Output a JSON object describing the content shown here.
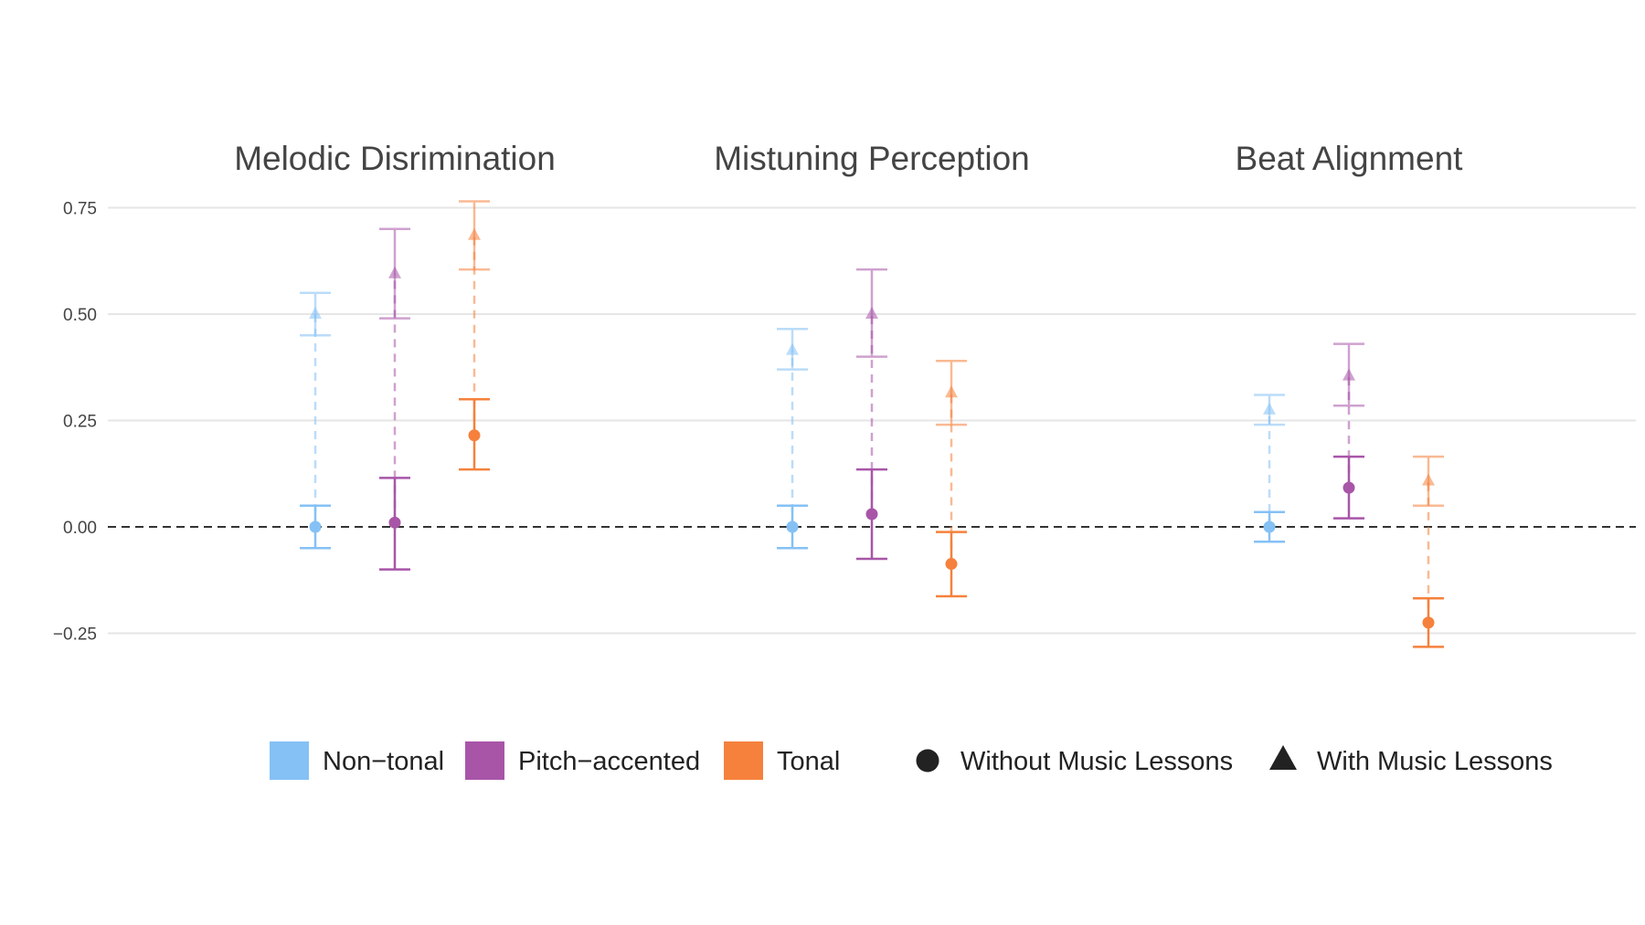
{
  "chart_data": {
    "type": "scatter",
    "subtype": "point-range with error bars",
    "panels": [
      "Melodic Disrimination",
      "Mistuning Perception",
      "Beat Alignment"
    ],
    "groups": [
      "Non−tonal",
      "Pitch−accented",
      "Tonal"
    ],
    "conditions": [
      "Without Music Lessons",
      "With Music Lessons"
    ],
    "yticks": [
      -0.25,
      0.0,
      0.25,
      0.5,
      0.75
    ],
    "ytick_labels": [
      "−0.25",
      "0.00",
      "0.25",
      "0.50",
      "0.75"
    ],
    "ylim": [
      -0.32,
      0.8
    ],
    "reference_line": 0.0,
    "grid": true,
    "legend_position": "bottom",
    "colors": {
      "Non−tonal": "#85c1f5",
      "Pitch−accented": "#a855a8",
      "Tonal": "#f5813c"
    },
    "data": [
      {
        "panel": "Melodic Disrimination",
        "group": "Non−tonal",
        "without": {
          "y": 0.0,
          "lo": -0.05,
          "hi": 0.05
        },
        "with": {
          "y": 0.5,
          "lo": 0.45,
          "hi": 0.55
        }
      },
      {
        "panel": "Melodic Disrimination",
        "group": "Pitch−accented",
        "without": {
          "y": 0.01,
          "lo": -0.1,
          "hi": 0.115
        },
        "with": {
          "y": 0.595,
          "lo": 0.49,
          "hi": 0.7
        }
      },
      {
        "panel": "Melodic Disrimination",
        "group": "Tonal",
        "without": {
          "y": 0.215,
          "lo": 0.135,
          "hi": 0.3
        },
        "with": {
          "y": 0.685,
          "lo": 0.605,
          "hi": 0.765
        }
      },
      {
        "panel": "Mistuning Perception",
        "group": "Non−tonal",
        "without": {
          "y": 0.0,
          "lo": -0.05,
          "hi": 0.05
        },
        "with": {
          "y": 0.415,
          "lo": 0.37,
          "hi": 0.465
        }
      },
      {
        "panel": "Mistuning Perception",
        "group": "Pitch−accented",
        "without": {
          "y": 0.03,
          "lo": -0.075,
          "hi": 0.135
        },
        "with": {
          "y": 0.5,
          "lo": 0.4,
          "hi": 0.605
        }
      },
      {
        "panel": "Mistuning Perception",
        "group": "Tonal",
        "without": {
          "y": -0.087,
          "lo": -0.163,
          "hi": -0.012
        },
        "with": {
          "y": 0.315,
          "lo": 0.24,
          "hi": 0.39
        }
      },
      {
        "panel": "Beat Alignment",
        "group": "Non−tonal",
        "without": {
          "y": 0.0,
          "lo": -0.035,
          "hi": 0.035
        },
        "with": {
          "y": 0.275,
          "lo": 0.24,
          "hi": 0.31
        }
      },
      {
        "panel": "Beat Alignment",
        "group": "Pitch−accented",
        "without": {
          "y": 0.092,
          "lo": 0.02,
          "hi": 0.165
        },
        "with": {
          "y": 0.355,
          "lo": 0.285,
          "hi": 0.43
        }
      },
      {
        "panel": "Beat Alignment",
        "group": "Tonal",
        "without": {
          "y": -0.225,
          "lo": -0.282,
          "hi": -0.168
        },
        "with": {
          "y": 0.108,
          "lo": 0.05,
          "hi": 0.165
        }
      }
    ]
  }
}
